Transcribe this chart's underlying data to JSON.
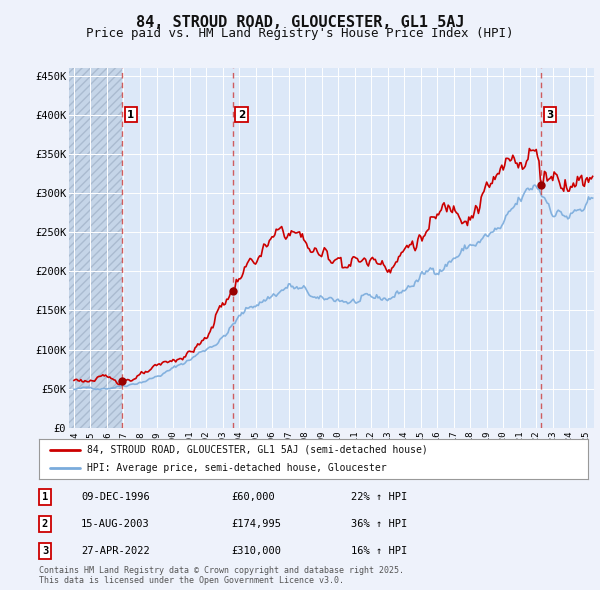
{
  "title": "84, STROUD ROAD, GLOUCESTER, GL1 5AJ",
  "subtitle": "Price paid vs. HM Land Registry's House Price Index (HPI)",
  "title_fontsize": 11,
  "subtitle_fontsize": 9,
  "bg_color": "#eef2fb",
  "plot_bg_color": "#dce8f8",
  "hatch_color": "#b8cce4",
  "grid_color": "#ffffff",
  "ylim": [
    0,
    460000
  ],
  "yticks": [
    0,
    50000,
    100000,
    150000,
    200000,
    250000,
    300000,
    350000,
    400000,
    450000
  ],
  "ytick_labels": [
    "£0",
    "£50K",
    "£100K",
    "£150K",
    "£200K",
    "£250K",
    "£300K",
    "£350K",
    "£400K",
    "£450K"
  ],
  "xlim_start": 1993.7,
  "xlim_end": 2025.5,
  "xticks": [
    1994,
    1995,
    1996,
    1997,
    1998,
    1999,
    2000,
    2001,
    2002,
    2003,
    2004,
    2005,
    2006,
    2007,
    2008,
    2009,
    2010,
    2011,
    2012,
    2013,
    2014,
    2015,
    2016,
    2017,
    2018,
    2019,
    2020,
    2021,
    2022,
    2023,
    2024,
    2025
  ],
  "sale_dates": [
    1996.92,
    2003.62,
    2022.32
  ],
  "sale_prices": [
    60000,
    174995,
    310000
  ],
  "sale_labels": [
    "1",
    "2",
    "3"
  ],
  "sale_date_strs": [
    "09-DEC-1996",
    "15-AUG-2003",
    "27-APR-2022"
  ],
  "sale_price_strs": [
    "£60,000",
    "£174,995",
    "£310,000"
  ],
  "sale_hpi_strs": [
    "22% ↑ HPI",
    "36% ↑ HPI",
    "16% ↑ HPI"
  ],
  "red_line_color": "#cc0000",
  "blue_line_color": "#7aabdc",
  "marker_color": "#990000",
  "legend_label_red": "84, STROUD ROAD, GLOUCESTER, GL1 5AJ (semi-detached house)",
  "legend_label_blue": "HPI: Average price, semi-detached house, Gloucester",
  "footer_text": "Contains HM Land Registry data © Crown copyright and database right 2025.\nThis data is licensed under the Open Government Licence v3.0."
}
